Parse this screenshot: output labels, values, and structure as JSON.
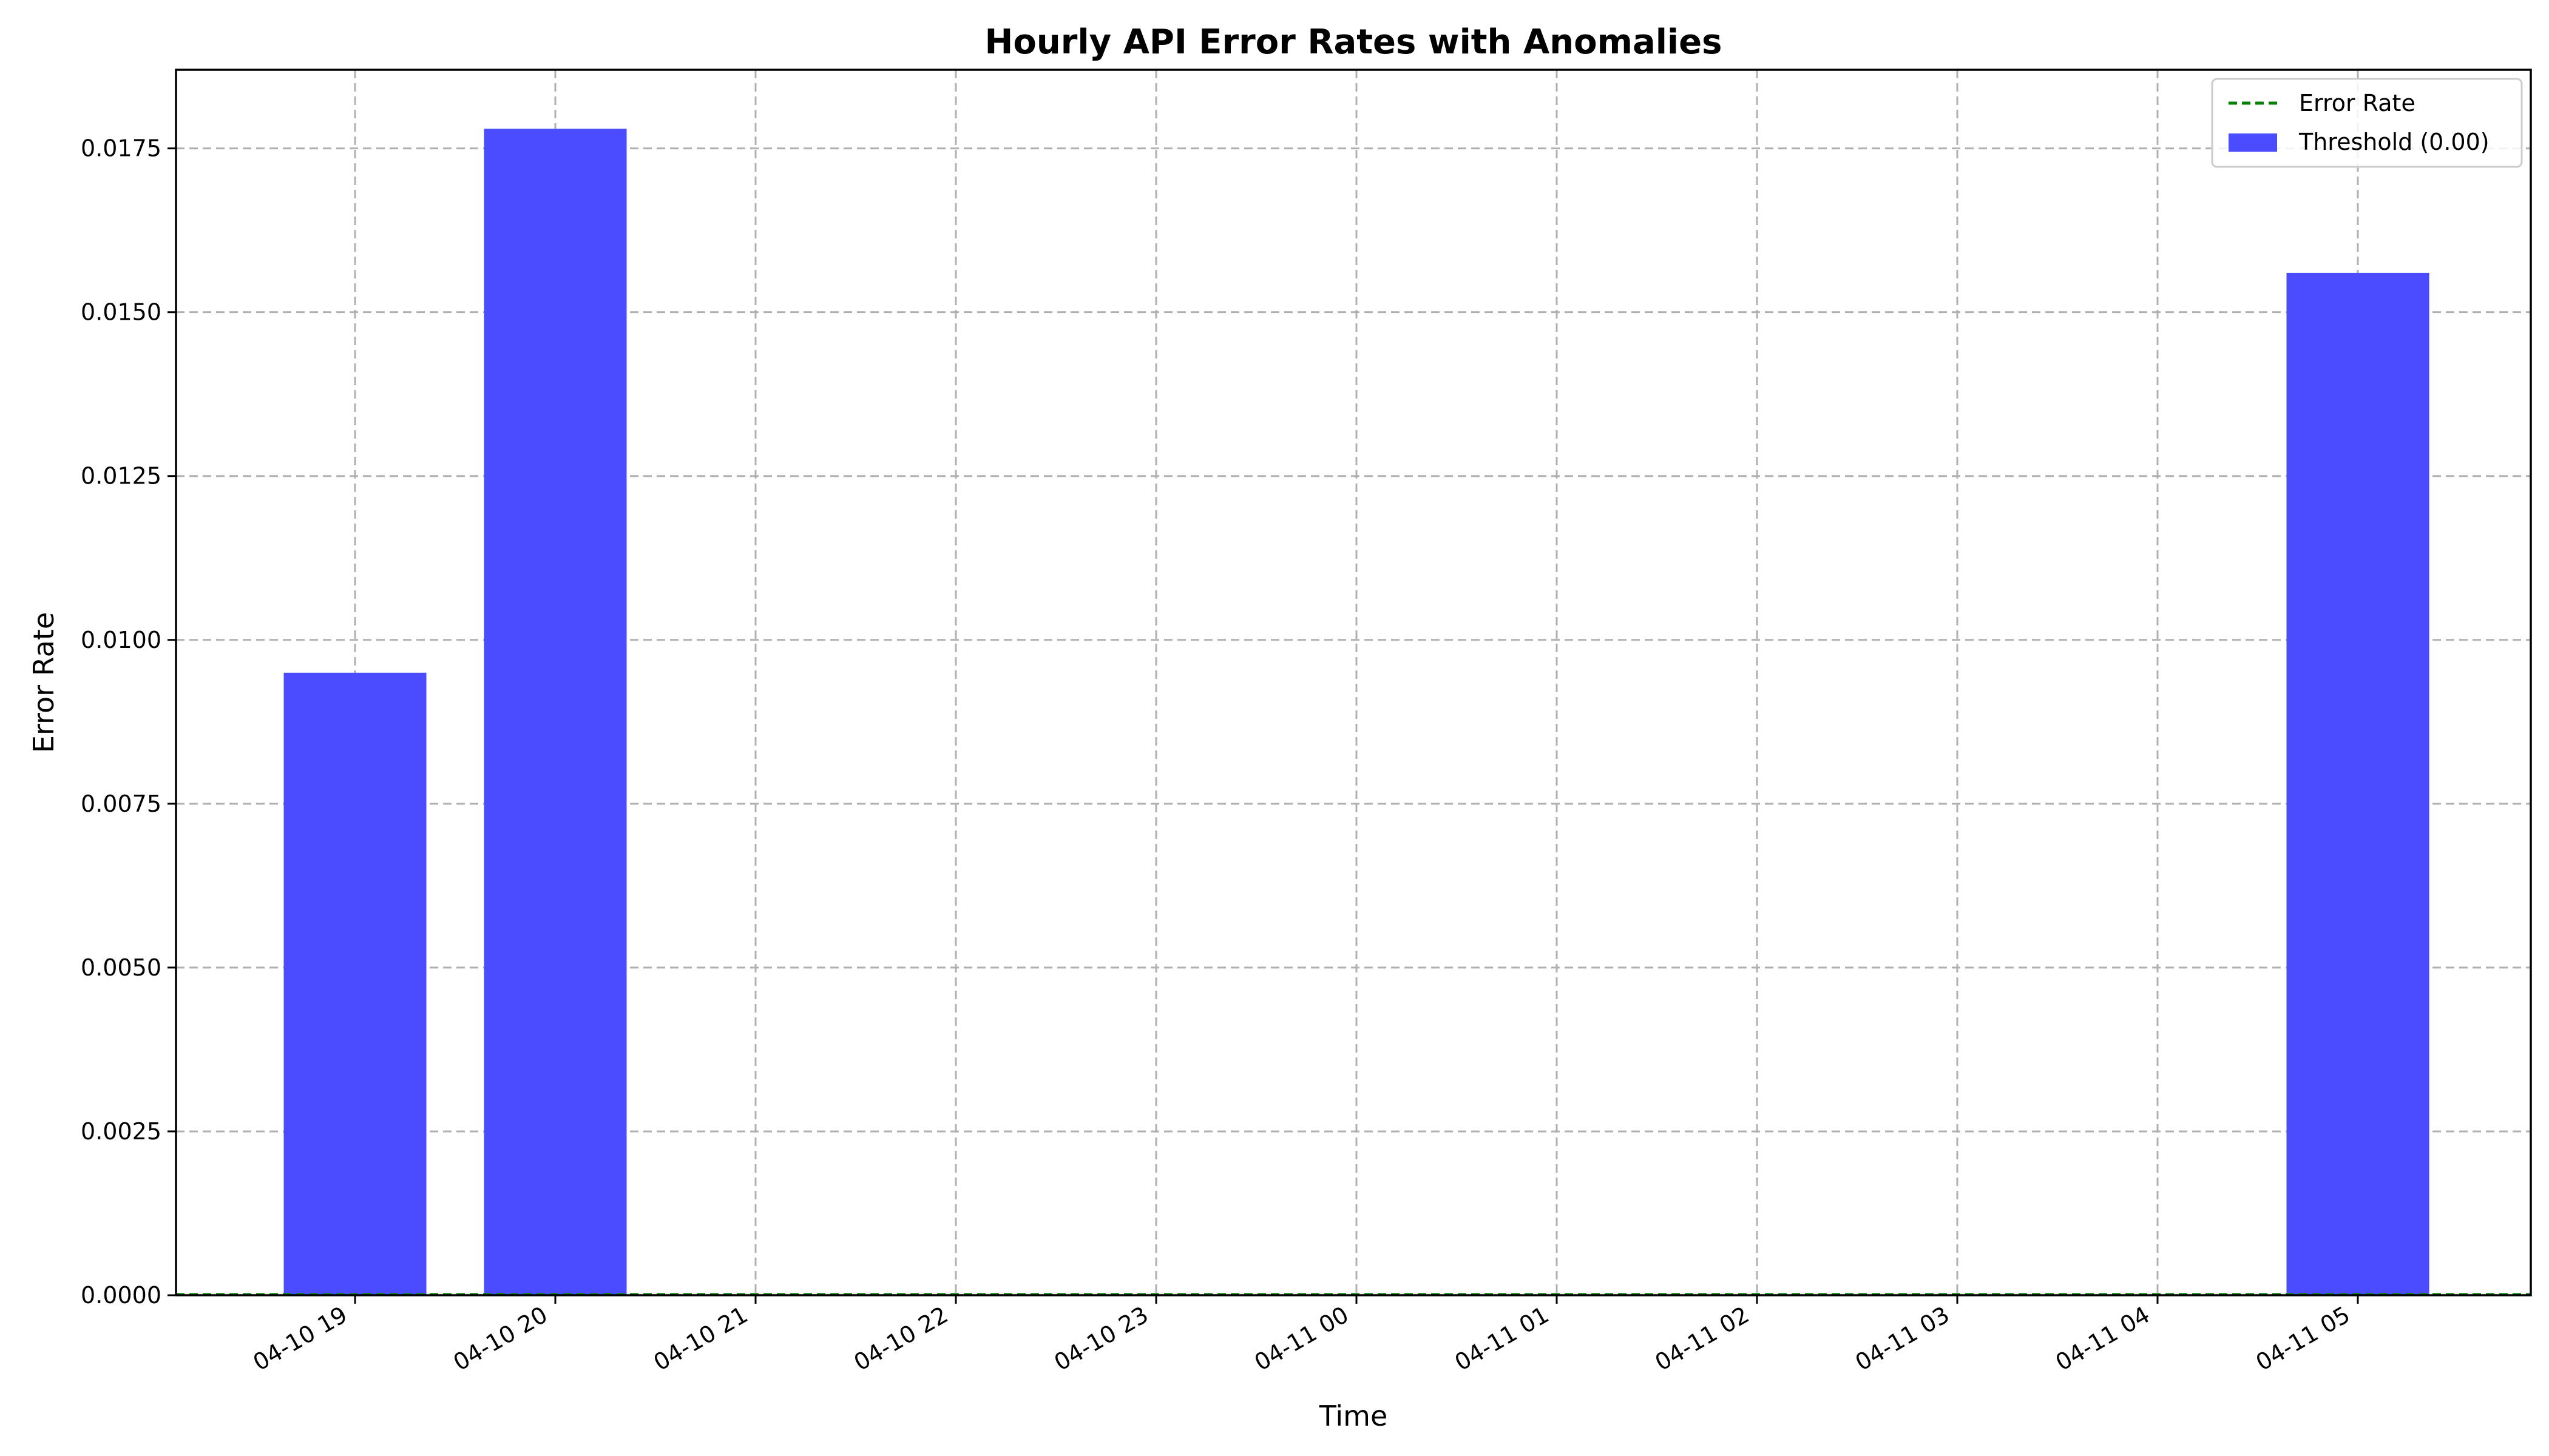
{
  "chart_data": {
    "type": "bar",
    "title": "Hourly API Error Rates with Anomalies",
    "xlabel": "Time",
    "ylabel": "Error Rate",
    "x_ticks": [
      "04-10 19",
      "04-10 20",
      "04-10 21",
      "04-10 22",
      "04-10 23",
      "04-11 00",
      "04-11 01",
      "04-11 02",
      "04-11 03",
      "04-11 04",
      "04-11 05"
    ],
    "y_ticks": [
      "0.0000",
      "0.0025",
      "0.0050",
      "0.0075",
      "0.0100",
      "0.0125",
      "0.0150",
      "0.0175"
    ],
    "ylim": [
      0,
      0.0187
    ],
    "xlim": [
      "2024-04-10 18:27",
      "2024-04-11 05:48"
    ],
    "grid": true,
    "legend_position": "top-right",
    "categories": [
      "04-10 19",
      "04-10 20",
      "04-10 21",
      "04-10 22",
      "04-10 23",
      "04-11 00",
      "04-11 01",
      "04-11 02",
      "04-11 03",
      "04-11 04",
      "04-11 05"
    ],
    "series": [
      {
        "name": "Threshold (0.00)",
        "type": "bar",
        "color": "#4b4bff",
        "values": [
          0.0095,
          0.0178,
          0,
          0,
          0,
          0,
          0,
          0,
          0,
          0,
          0.0156
        ]
      },
      {
        "name": "Error Rate",
        "type": "line",
        "style": "dashed",
        "color": "#008000",
        "values": [
          0,
          0,
          0,
          0,
          0,
          0,
          0,
          0,
          0,
          0,
          0
        ]
      }
    ]
  }
}
